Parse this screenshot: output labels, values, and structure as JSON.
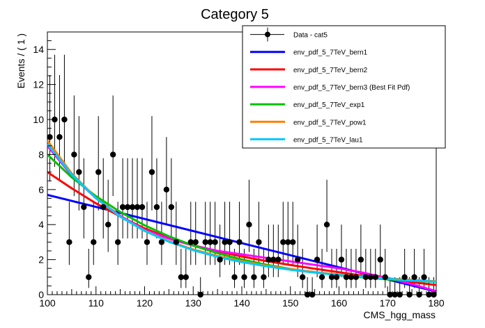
{
  "chart_data": {
    "type": "scatter",
    "title": "Category 5",
    "xlabel": "CMS_hgg_mass",
    "ylabel": "Events / ( 1 )",
    "xlim": [
      100,
      180
    ],
    "ylim": [
      0,
      15
    ],
    "x_ticks": [
      100,
      110,
      120,
      130,
      140,
      150,
      160,
      170,
      180
    ],
    "y_ticks": [
      0,
      2,
      4,
      6,
      8,
      10,
      12,
      14
    ],
    "grid": false,
    "legend_position": "top-right",
    "data_series": {
      "name": "Data - cat5",
      "color": "#000000",
      "x": [
        100.5,
        101.5,
        102.5,
        103.5,
        104.5,
        105.5,
        106.5,
        107.5,
        108.5,
        109.5,
        110.5,
        111.5,
        112.5,
        113.5,
        114.5,
        115.5,
        116.5,
        117.5,
        118.5,
        119.5,
        120.5,
        121.5,
        122.5,
        123.5,
        124.5,
        125.5,
        126.5,
        127.5,
        128.5,
        129.5,
        130.5,
        131.5,
        132.5,
        133.5,
        134.5,
        135.5,
        136.5,
        137.5,
        138.5,
        139.5,
        140.5,
        141.5,
        142.5,
        143.5,
        144.5,
        145.5,
        146.5,
        147.5,
        148.5,
        149.5,
        150.5,
        151.5,
        152.5,
        153.5,
        154.5,
        155.5,
        156.5,
        157.5,
        158.5,
        159.5,
        160.5,
        161.5,
        162.5,
        163.5,
        164.5,
        165.5,
        166.5,
        167.5,
        168.5,
        169.5,
        170.5,
        171.5,
        172.5,
        173.5,
        174.5,
        175.5,
        176.5,
        177.5,
        178.5,
        179.5
      ],
      "y": [
        9,
        10,
        9,
        10,
        3,
        8,
        7,
        5,
        1,
        3,
        7,
        5,
        4,
        8,
        3,
        5,
        5,
        5,
        5,
        5,
        3,
        7,
        5,
        3,
        6,
        5,
        3,
        1,
        1,
        3,
        3,
        0,
        3,
        3,
        3,
        2,
        3,
        3,
        1,
        3,
        1,
        4,
        1,
        3,
        1,
        2,
        2,
        2,
        3,
        3,
        3,
        2,
        1,
        0,
        0,
        2,
        1,
        4,
        1,
        1,
        2,
        1,
        1,
        1,
        2,
        1,
        1,
        1,
        2,
        1,
        0,
        0,
        0,
        1,
        0,
        1,
        0,
        1,
        0,
        0
      ]
    },
    "series": [
      {
        "name": "env_pdf_5_7TeV_bern1",
        "color": "#0000ff",
        "x": [
          100,
          120,
          140,
          160,
          180
        ],
        "y": [
          5.7,
          4.32,
          2.94,
          1.56,
          0.18
        ]
      },
      {
        "name": "env_pdf_5_7TeV_bern2",
        "color": "#ff0000",
        "x": [
          100,
          105,
          110,
          115,
          120,
          125,
          130,
          135,
          140,
          145,
          150,
          155,
          160,
          165,
          170,
          175,
          180
        ],
        "y": [
          7.0,
          6.07,
          5.21,
          4.46,
          3.78,
          3.24,
          2.82,
          2.48,
          2.18,
          1.92,
          1.69,
          1.48,
          1.28,
          1.08,
          0.88,
          0.71,
          0.55
        ]
      },
      {
        "name": "env_pdf_5_7TeV_bern3 (Best Fit Pdf)",
        "color": "#ff00ff",
        "x": [
          100,
          105,
          110,
          115,
          120,
          125,
          130,
          135,
          140,
          145,
          150,
          155,
          160,
          165,
          170,
          175,
          180
        ],
        "y": [
          8.5,
          6.8,
          5.5,
          4.5,
          3.7,
          3.2,
          2.8,
          2.5,
          2.3,
          2.1,
          1.9,
          1.7,
          1.5,
          1.25,
          0.95,
          0.6,
          0.2
        ]
      },
      {
        "name": "env_pdf_5_7TeV_exp1",
        "color": "#00c000",
        "x": [
          100,
          105,
          110,
          115,
          120,
          125,
          130,
          135,
          140,
          145,
          150,
          155,
          160,
          165,
          170,
          175,
          180
        ],
        "y": [
          8.0,
          6.7,
          5.62,
          4.72,
          3.96,
          3.33,
          2.8,
          2.37,
          2.01,
          1.71,
          1.47,
          1.27,
          1.11,
          0.98,
          0.87,
          0.79,
          0.73
        ]
      },
      {
        "name": "env_pdf_5_7TeV_pow1",
        "color": "#ff7f00",
        "x": [
          100,
          105,
          110,
          115,
          120,
          125,
          130,
          135,
          140,
          145,
          150,
          155,
          160,
          165,
          170,
          175,
          180
        ],
        "y": [
          8.8,
          6.92,
          5.52,
          4.46,
          3.66,
          3.05,
          2.58,
          2.21,
          1.91,
          1.66,
          1.46,
          1.29,
          1.15,
          1.03,
          0.93,
          0.84,
          0.76
        ]
      },
      {
        "name": "env_pdf_5_7TeV_lau1",
        "color": "#00c8ff",
        "x": [
          100,
          105,
          110,
          115,
          120,
          125,
          130,
          135,
          140,
          145,
          150,
          155,
          160,
          165,
          170,
          175,
          180
        ],
        "y": [
          8.6,
          6.85,
          5.5,
          4.45,
          3.64,
          3.02,
          2.54,
          2.16,
          1.86,
          1.62,
          1.42,
          1.26,
          1.12,
          1.0,
          0.9,
          0.81,
          0.74
        ]
      }
    ],
    "legend": [
      "Data - cat5",
      "env_pdf_5_7TeV_bern1",
      "env_pdf_5_7TeV_bern2",
      "env_pdf_5_7TeV_bern3 (Best Fit Pdf)",
      "env_pdf_5_7TeV_exp1",
      "env_pdf_5_7TeV_pow1",
      "env_pdf_5_7TeV_lau1"
    ]
  }
}
